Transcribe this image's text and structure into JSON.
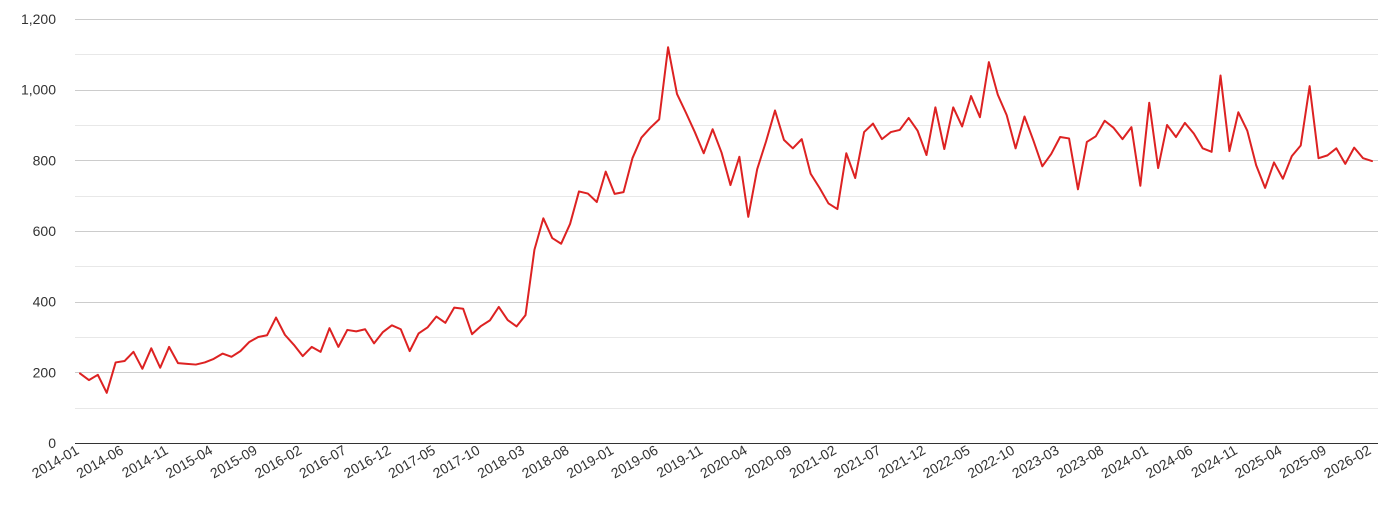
{
  "chart_data": {
    "type": "line",
    "title": "",
    "xlabel": "",
    "ylabel": "",
    "ylim": [
      0,
      1200
    ],
    "y_ticks": [
      0,
      200,
      400,
      600,
      800,
      1000,
      1200
    ],
    "y_tick_labels": [
      "0",
      "200",
      "400",
      "600",
      "800",
      "1,000",
      "1,200"
    ],
    "y_minor_gridlines": [
      100,
      300,
      500,
      700,
      900,
      1100
    ],
    "grid": true,
    "legend": "none",
    "line_color": "#dd2222",
    "x_tick_labels": [
      "2014-01",
      "2014-06",
      "2014-11",
      "2015-04",
      "2015-09",
      "2016-02",
      "2016-07",
      "2016-12",
      "2017-05",
      "2017-10",
      "2018-03",
      "2018-08",
      "2019-01",
      "2019-06",
      "2019-11",
      "2020-04",
      "2020-09",
      "2021-02",
      "2021-07",
      "2021-12",
      "2022-05",
      "2022-10",
      "2023-03",
      "2023-08",
      "2024-01",
      "2024-06",
      "2024-11",
      "2025-04",
      "2025-09",
      "2026-02"
    ],
    "x_start": "2014-01",
    "x_end": "2026-02",
    "series": [
      {
        "values": [
          197,
          178,
          193,
          142,
          228,
          232,
          258,
          210,
          268,
          213,
          272,
          226,
          224,
          222,
          228,
          238,
          253,
          244,
          260,
          286,
          300,
          305,
          355,
          306,
          278,
          246,
          272,
          258,
          325,
          272,
          320,
          316,
          322,
          282,
          314,
          333,
          322,
          260,
          310,
          327,
          358,
          340,
          383,
          380,
          308,
          331,
          347,
          385,
          348,
          330,
          362,
          547,
          636,
          580,
          564,
          620,
          712,
          706,
          682,
          768,
          705,
          710,
          806,
          864,
          892,
          916,
          1120,
          988,
          935,
          880,
          820,
          888,
          822,
          730,
          810,
          640,
          775,
          854,
          941,
          858,
          834,
          860,
          762,
          722,
          678,
          662,
          820,
          750,
          880,
          904,
          860,
          880,
          886,
          920,
          884,
          815,
          950,
          832,
          950,
          896,
          982,
          922,
          1078,
          986,
          928,
          834,
          924,
          856,
          783,
          818,
          866,
          862,
          718,
          852,
          868,
          912,
          892,
          860,
          894,
          728,
          963,
          778,
          900,
          866,
          906,
          876,
          834,
          824,
          1040,
          826,
          936,
          884,
          786,
          722,
          794,
          748,
          812,
          842,
          1010,
          806,
          814,
          834,
          790,
          836,
          806,
          798
        ]
      }
    ]
  }
}
